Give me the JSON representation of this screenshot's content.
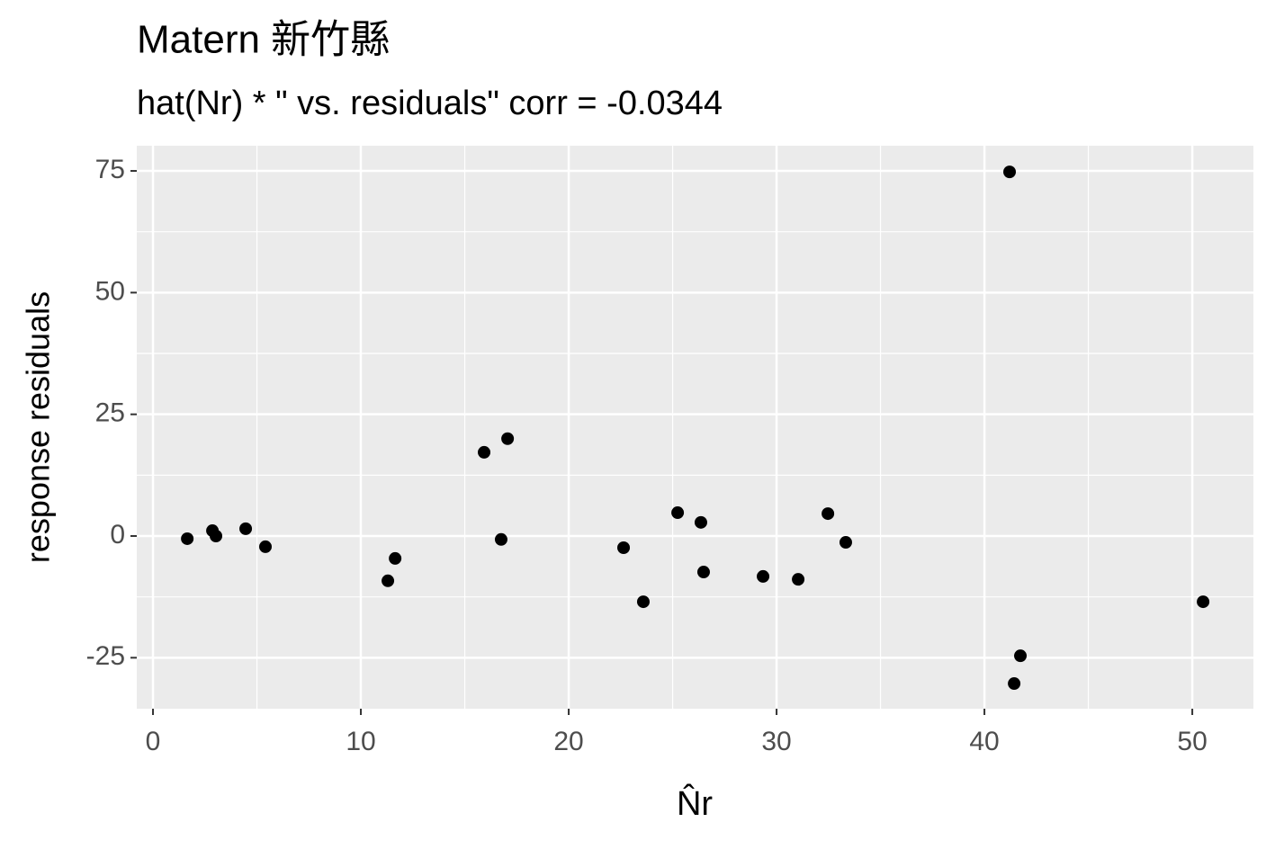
{
  "chart_data": {
    "type": "scatter",
    "title": "Matern 新竹縣",
    "subtitle": "hat(Nr) * \"  vs. residuals\" corr = -0.0344",
    "xlabel": "N̂r",
    "ylabel": "response residuals",
    "x": [
      1.65,
      2.86,
      3.03,
      4.46,
      5.41,
      11.3,
      11.65,
      15.93,
      17.06,
      16.75,
      22.64,
      23.59,
      25.24,
      26.36,
      26.49,
      29.35,
      31.04,
      32.47,
      33.33,
      41.21,
      41.73,
      41.43,
      50.52
    ],
    "values": [
      -0.55,
      1.1,
      0,
      1.5,
      -2.2,
      -9.2,
      -4.6,
      17.2,
      20.0,
      -0.7,
      -2.4,
      -13.5,
      4.8,
      2.8,
      -7.4,
      -8.3,
      -8.9,
      4.6,
      -1.3,
      74.8,
      -24.6,
      -30.3,
      -13.5
    ],
    "color": "#000000",
    "xlim": [
      -0.78,
      52.94
    ],
    "ylim": [
      -35.47,
      80.18
    ],
    "xticks": [
      0,
      10,
      20,
      30,
      40,
      50
    ],
    "yticks": [
      -25,
      0,
      25,
      50,
      75
    ],
    "grid": true
  }
}
